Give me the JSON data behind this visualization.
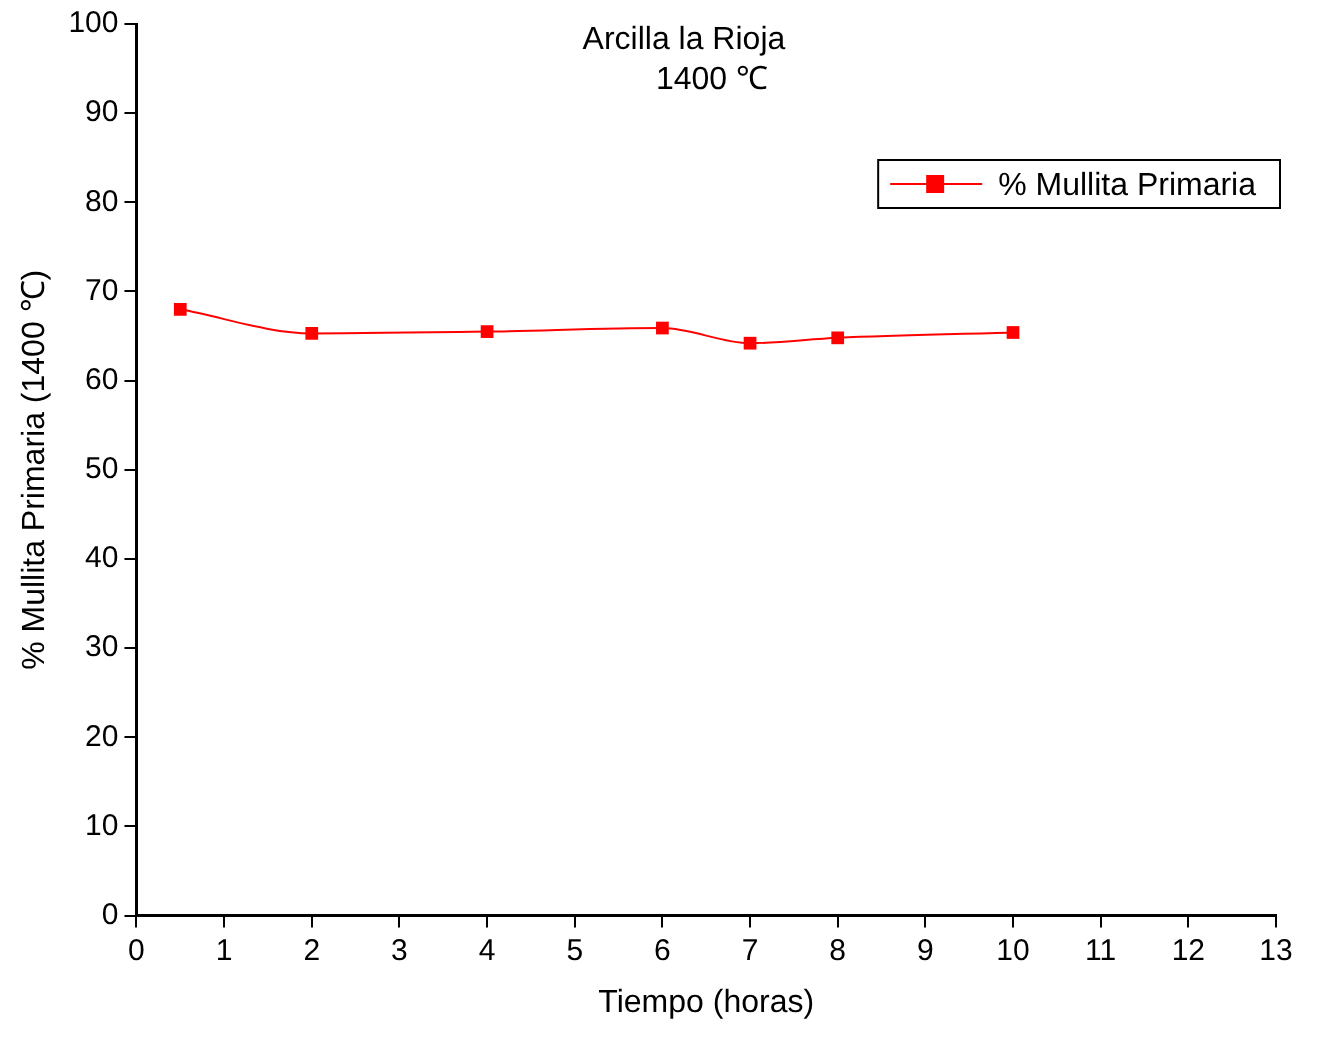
{
  "chart_data": {
    "type": "line",
    "title": "Arcilla la Rioja",
    "subtitle": "1400 ℃",
    "xlabel": "Tiempo (horas)",
    "ylabel": "% Mullita Primaria (1400 ℃)",
    "x": [
      0.5,
      2,
      4,
      6,
      7,
      8,
      10
    ],
    "series": [
      {
        "name": "% Mullita Primaria",
        "color": "#ff0000",
        "values": [
          68.0,
          65.3,
          65.5,
          65.9,
          64.2,
          64.8,
          65.4
        ]
      }
    ],
    "xlim": [
      0,
      13
    ],
    "xticks": [
      0,
      1,
      2,
      3,
      4,
      5,
      6,
      7,
      8,
      9,
      10,
      11,
      12,
      13
    ],
    "ylim": [
      0,
      100
    ],
    "yticks": [
      0,
      10,
      20,
      30,
      40,
      50,
      60,
      70,
      80,
      90,
      100
    ],
    "grid": false,
    "legend": "top right",
    "marker": "square",
    "line_style": "solid"
  }
}
